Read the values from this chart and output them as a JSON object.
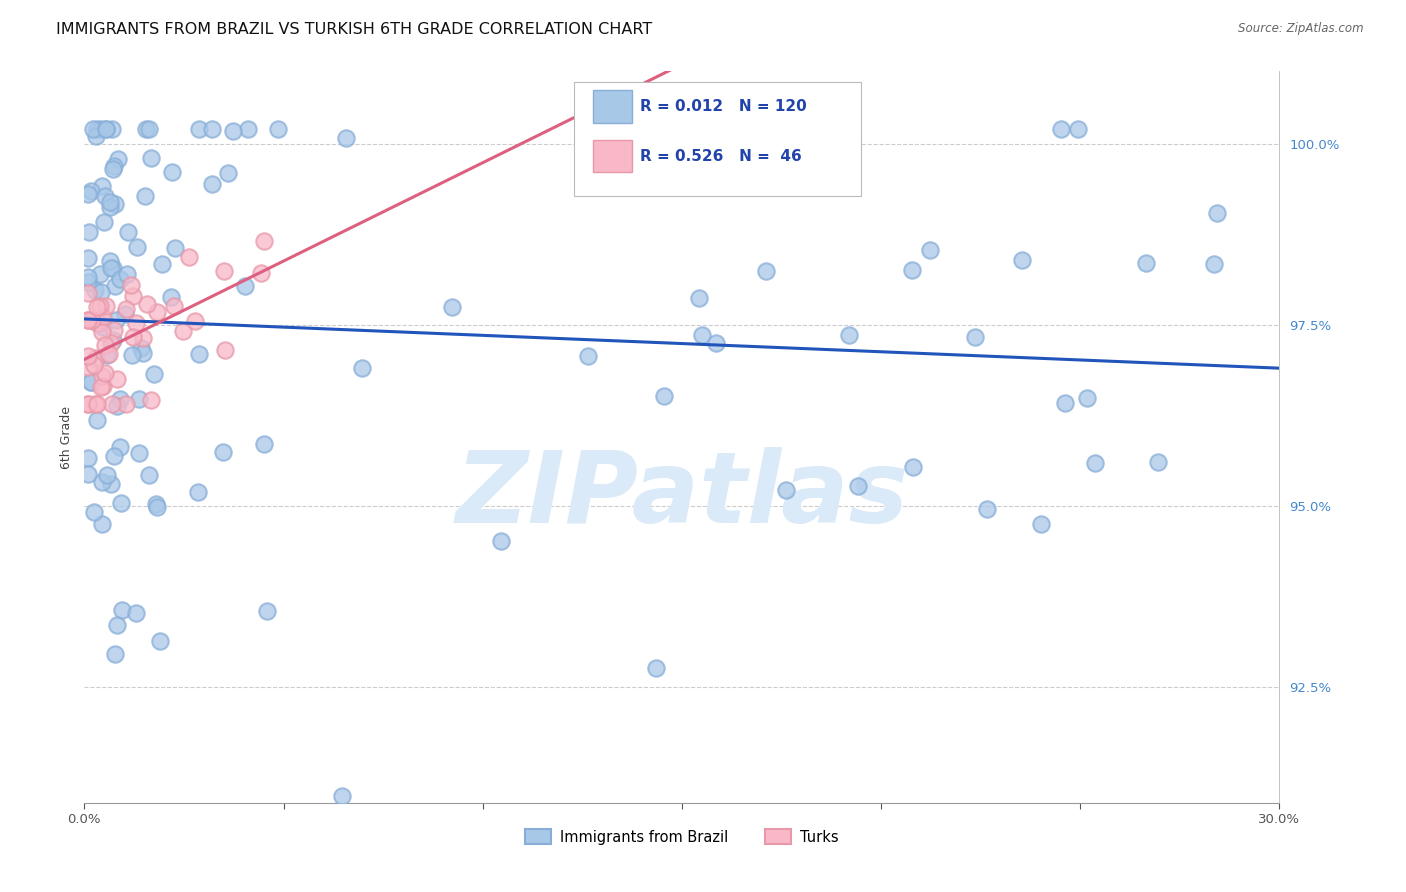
{
  "title": "IMMIGRANTS FROM BRAZIL VS TURKISH 6TH GRADE CORRELATION CHART",
  "source": "Source: ZipAtlas.com",
  "ylabel": "6th Grade",
  "xlim": [
    0.0,
    0.3
  ],
  "ylim": [
    0.909,
    1.01
  ],
  "yticks": [
    0.925,
    0.95,
    0.975,
    1.0
  ],
  "yticklabels": [
    "92.5%",
    "95.0%",
    "97.5%",
    "100.0%"
  ],
  "brazil_color": "#a8c8e8",
  "brazil_edge": "#88aed8",
  "turks_color": "#f8b8c8",
  "turks_edge": "#e898a8",
  "brazil_line_color": "#2255bb",
  "turks_line_color": "#dd6080",
  "background_color": "#ffffff",
  "grid_color": "#cccccc",
  "title_fontsize": 11.5,
  "axis_label_fontsize": 9,
  "tick_fontsize": 9.5,
  "watermark_text": "ZIPatlas",
  "watermark_color": "#daeaf8",
  "watermark_fontsize": 72,
  "legend_box_color": "#a8c8e8",
  "legend_pink_color": "#f8b8c8",
  "R_brazil": "0.012",
  "N_brazil": "120",
  "R_turks": "0.526",
  "N_turks": " 46",
  "brazil_label": "Immigrants from Brazil",
  "turks_label": "Turks"
}
